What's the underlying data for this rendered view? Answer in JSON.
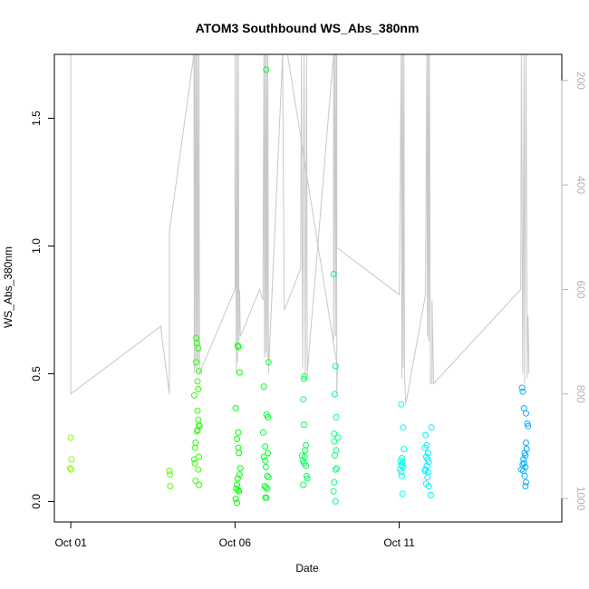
{
  "chart_data": {
    "type": "scatter",
    "title": "ATOM3 Southbound WS_Abs_380nm",
    "xlabel": "Date",
    "ylabel": "WS_Abs_380nm",
    "x_ticks": [
      {
        "day": 1,
        "label": "Oct 01"
      },
      {
        "day": 6,
        "label": "Oct 06"
      },
      {
        "day": 11,
        "label": "Oct 11"
      }
    ],
    "y_ticks": [
      0.0,
      0.5,
      1.0,
      1.5
    ],
    "y_tick_labels": [
      "0.0",
      "0.5",
      "1.0",
      "1.5"
    ],
    "right_ticks": [
      200,
      400,
      600,
      800,
      1000
    ],
    "right_tick_labels": [
      "200",
      "400",
      "600",
      "800",
      "1000"
    ],
    "xlim": [
      0.5,
      15.95
    ],
    "ylim": [
      -0.08,
      1.75
    ],
    "right_ylim": [
      1045,
      150
    ],
    "right_axis_color": "#b3b3b3",
    "pressure_line_color": "#c8c8c8",
    "grid": false,
    "points": [
      {
        "x": 1.0,
        "y": 0.25,
        "color": "#80ff00"
      },
      {
        "x": 1.02,
        "y": 0.165,
        "color": "#80ff00"
      },
      {
        "x": 0.98,
        "y": 0.13,
        "color": "#80ff00"
      },
      {
        "x": 1.01,
        "y": 0.125,
        "color": "#80ff00"
      },
      {
        "x": 4.0,
        "y": 0.12,
        "color": "#55ff00"
      },
      {
        "x": 4.02,
        "y": 0.105,
        "color": "#55ff00"
      },
      {
        "x": 4.03,
        "y": 0.06,
        "color": "#55ff00"
      },
      {
        "x": 4.82,
        "y": 0.64,
        "color": "#2bff00"
      },
      {
        "x": 4.84,
        "y": 0.62,
        "color": "#2bff00"
      },
      {
        "x": 4.88,
        "y": 0.6,
        "color": "#2bff00"
      },
      {
        "x": 4.82,
        "y": 0.545,
        "color": "#2bff00"
      },
      {
        "x": 4.9,
        "y": 0.51,
        "color": "#2bff00"
      },
      {
        "x": 4.86,
        "y": 0.47,
        "color": "#2bff00"
      },
      {
        "x": 4.88,
        "y": 0.44,
        "color": "#2bff00"
      },
      {
        "x": 4.76,
        "y": 0.415,
        "color": "#2bff00"
      },
      {
        "x": 4.86,
        "y": 0.355,
        "color": "#2bff00"
      },
      {
        "x": 4.88,
        "y": 0.32,
        "color": "#2bff00"
      },
      {
        "x": 4.9,
        "y": 0.3,
        "color": "#2bff00"
      },
      {
        "x": 4.92,
        "y": 0.295,
        "color": "#2bff00"
      },
      {
        "x": 4.86,
        "y": 0.28,
        "color": "#2bff00"
      },
      {
        "x": 4.84,
        "y": 0.275,
        "color": "#2bff00"
      },
      {
        "x": 4.8,
        "y": 0.23,
        "color": "#2bff00"
      },
      {
        "x": 4.78,
        "y": 0.21,
        "color": "#2bff00"
      },
      {
        "x": 4.9,
        "y": 0.175,
        "color": "#2bff00"
      },
      {
        "x": 4.76,
        "y": 0.165,
        "color": "#2bff00"
      },
      {
        "x": 4.78,
        "y": 0.15,
        "color": "#2bff00"
      },
      {
        "x": 4.88,
        "y": 0.125,
        "color": "#2bff00"
      },
      {
        "x": 4.8,
        "y": 0.08,
        "color": "#2bff00"
      },
      {
        "x": 4.9,
        "y": 0.065,
        "color": "#2bff00"
      },
      {
        "x": 6.08,
        "y": 0.61,
        "color": "#00ff00"
      },
      {
        "x": 6.1,
        "y": 0.605,
        "color": "#00ff00"
      },
      {
        "x": 6.14,
        "y": 0.505,
        "color": "#00ff00"
      },
      {
        "x": 6.02,
        "y": 0.365,
        "color": "#00ff00"
      },
      {
        "x": 6.1,
        "y": 0.27,
        "color": "#00ff00"
      },
      {
        "x": 6.06,
        "y": 0.245,
        "color": "#00ff00"
      },
      {
        "x": 6.1,
        "y": 0.21,
        "color": "#00ff00"
      },
      {
        "x": 6.12,
        "y": 0.19,
        "color": "#00ff00"
      },
      {
        "x": 6.16,
        "y": 0.13,
        "color": "#00ff00"
      },
      {
        "x": 6.14,
        "y": 0.105,
        "color": "#00ff00"
      },
      {
        "x": 6.08,
        "y": 0.09,
        "color": "#00ff00"
      },
      {
        "x": 6.06,
        "y": 0.065,
        "color": "#00ff00"
      },
      {
        "x": 6.04,
        "y": 0.05,
        "color": "#00ff00"
      },
      {
        "x": 6.1,
        "y": 0.045,
        "color": "#00ff00"
      },
      {
        "x": 6.12,
        "y": 0.04,
        "color": "#00ff00"
      },
      {
        "x": 6.02,
        "y": 0.01,
        "color": "#00ff00"
      },
      {
        "x": 6.06,
        "y": -0.005,
        "color": "#00ff00"
      },
      {
        "x": 6.95,
        "y": 1.69,
        "color": "#00ff2b"
      },
      {
        "x": 7.02,
        "y": 0.545,
        "color": "#00ff2b"
      },
      {
        "x": 6.88,
        "y": 0.45,
        "color": "#00ff2b"
      },
      {
        "x": 6.96,
        "y": 0.34,
        "color": "#00ff2b"
      },
      {
        "x": 7.0,
        "y": 0.33,
        "color": "#00ff2b"
      },
      {
        "x": 6.86,
        "y": 0.27,
        "color": "#00ff2b"
      },
      {
        "x": 6.92,
        "y": 0.215,
        "color": "#00ff2b"
      },
      {
        "x": 7.0,
        "y": 0.19,
        "color": "#00ff2b"
      },
      {
        "x": 6.88,
        "y": 0.175,
        "color": "#00ff2b"
      },
      {
        "x": 6.92,
        "y": 0.16,
        "color": "#00ff2b"
      },
      {
        "x": 6.94,
        "y": 0.135,
        "color": "#00ff2b"
      },
      {
        "x": 6.98,
        "y": 0.1,
        "color": "#00ff2b"
      },
      {
        "x": 7.02,
        "y": 0.095,
        "color": "#00ff2b"
      },
      {
        "x": 6.9,
        "y": 0.06,
        "color": "#00ff2b"
      },
      {
        "x": 6.94,
        "y": 0.055,
        "color": "#00ff2b"
      },
      {
        "x": 6.98,
        "y": 0.05,
        "color": "#00ff2b"
      },
      {
        "x": 6.92,
        "y": 0.015,
        "color": "#00ff2b"
      },
      {
        "x": 6.96,
        "y": 0.015,
        "color": "#00ff2b"
      },
      {
        "x": 8.12,
        "y": 0.49,
        "color": "#00ff55"
      },
      {
        "x": 8.1,
        "y": 0.48,
        "color": "#00ff55"
      },
      {
        "x": 8.08,
        "y": 0.4,
        "color": "#00ff55"
      },
      {
        "x": 8.1,
        "y": 0.3,
        "color": "#00ff55"
      },
      {
        "x": 8.16,
        "y": 0.22,
        "color": "#00ff55"
      },
      {
        "x": 8.14,
        "y": 0.2,
        "color": "#00ff55"
      },
      {
        "x": 8.04,
        "y": 0.18,
        "color": "#00ff55"
      },
      {
        "x": 8.12,
        "y": 0.175,
        "color": "#00ff55"
      },
      {
        "x": 8.06,
        "y": 0.16,
        "color": "#00ff55"
      },
      {
        "x": 8.1,
        "y": 0.15,
        "color": "#00ff55"
      },
      {
        "x": 8.16,
        "y": 0.14,
        "color": "#00ff55"
      },
      {
        "x": 8.18,
        "y": 0.1,
        "color": "#00ff55"
      },
      {
        "x": 8.2,
        "y": 0.09,
        "color": "#00ff55"
      },
      {
        "x": 8.08,
        "y": 0.065,
        "color": "#00ff55"
      },
      {
        "x": 9.0,
        "y": 0.89,
        "color": "#00ff80"
      },
      {
        "x": 9.06,
        "y": 0.53,
        "color": "#00ff80"
      },
      {
        "x": 9.04,
        "y": 0.42,
        "color": "#00ff80"
      },
      {
        "x": 9.08,
        "y": 0.33,
        "color": "#00ff80"
      },
      {
        "x": 9.02,
        "y": 0.265,
        "color": "#00ff80"
      },
      {
        "x": 9.14,
        "y": 0.25,
        "color": "#00ff80"
      },
      {
        "x": 9.02,
        "y": 0.235,
        "color": "#00ff80"
      },
      {
        "x": 9.08,
        "y": 0.2,
        "color": "#00ff80"
      },
      {
        "x": 9.04,
        "y": 0.18,
        "color": "#00ff80"
      },
      {
        "x": 9.1,
        "y": 0.13,
        "color": "#00ff80"
      },
      {
        "x": 9.06,
        "y": 0.125,
        "color": "#00ff80"
      },
      {
        "x": 9.02,
        "y": 0.075,
        "color": "#00ff80"
      },
      {
        "x": 9.0,
        "y": 0.04,
        "color": "#00ff80"
      },
      {
        "x": 9.06,
        "y": 0.0,
        "color": "#00ff80"
      },
      {
        "x": 11.06,
        "y": 0.38,
        "color": "#00ffea"
      },
      {
        "x": 11.12,
        "y": 0.29,
        "color": "#00ffea"
      },
      {
        "x": 11.14,
        "y": 0.205,
        "color": "#00ffea"
      },
      {
        "x": 11.08,
        "y": 0.17,
        "color": "#00ffea"
      },
      {
        "x": 11.04,
        "y": 0.16,
        "color": "#00ffea"
      },
      {
        "x": 11.1,
        "y": 0.155,
        "color": "#00ffea"
      },
      {
        "x": 11.06,
        "y": 0.145,
        "color": "#00ffea"
      },
      {
        "x": 11.08,
        "y": 0.14,
        "color": "#00ffea"
      },
      {
        "x": 11.12,
        "y": 0.135,
        "color": "#00ffea"
      },
      {
        "x": 11.02,
        "y": 0.125,
        "color": "#00ffea"
      },
      {
        "x": 11.06,
        "y": 0.115,
        "color": "#00ffea"
      },
      {
        "x": 11.08,
        "y": 0.1,
        "color": "#00ffea"
      },
      {
        "x": 11.1,
        "y": 0.03,
        "color": "#00ffea"
      },
      {
        "x": 11.8,
        "y": 0.26,
        "color": "#00f0ff"
      },
      {
        "x": 11.98,
        "y": 0.29,
        "color": "#00f0ff"
      },
      {
        "x": 11.84,
        "y": 0.22,
        "color": "#00f0ff"
      },
      {
        "x": 11.78,
        "y": 0.21,
        "color": "#00f0ff"
      },
      {
        "x": 11.88,
        "y": 0.19,
        "color": "#00f0ff"
      },
      {
        "x": 11.82,
        "y": 0.175,
        "color": "#00f0ff"
      },
      {
        "x": 11.86,
        "y": 0.165,
        "color": "#00f0ff"
      },
      {
        "x": 11.9,
        "y": 0.155,
        "color": "#00f0ff"
      },
      {
        "x": 11.84,
        "y": 0.14,
        "color": "#00f0ff"
      },
      {
        "x": 11.8,
        "y": 0.125,
        "color": "#00f0ff"
      },
      {
        "x": 11.78,
        "y": 0.12,
        "color": "#00f0ff"
      },
      {
        "x": 11.88,
        "y": 0.115,
        "color": "#00f0ff"
      },
      {
        "x": 11.86,
        "y": 0.095,
        "color": "#00f0ff"
      },
      {
        "x": 11.82,
        "y": 0.07,
        "color": "#00f0ff"
      },
      {
        "x": 11.9,
        "y": 0.06,
        "color": "#00f0ff"
      },
      {
        "x": 11.96,
        "y": 0.025,
        "color": "#00f0ff"
      },
      {
        "x": 14.74,
        "y": 0.445,
        "color": "#00b0ff"
      },
      {
        "x": 14.76,
        "y": 0.43,
        "color": "#00b0ff"
      },
      {
        "x": 14.8,
        "y": 0.365,
        "color": "#00b0ff"
      },
      {
        "x": 14.86,
        "y": 0.345,
        "color": "#00b0ff"
      },
      {
        "x": 14.9,
        "y": 0.305,
        "color": "#00b0ff"
      },
      {
        "x": 14.92,
        "y": 0.295,
        "color": "#00b0ff"
      },
      {
        "x": 14.86,
        "y": 0.23,
        "color": "#00b0ff"
      },
      {
        "x": 14.88,
        "y": 0.205,
        "color": "#00b0ff"
      },
      {
        "x": 14.82,
        "y": 0.19,
        "color": "#00b0ff"
      },
      {
        "x": 14.84,
        "y": 0.18,
        "color": "#00b0ff"
      },
      {
        "x": 14.78,
        "y": 0.165,
        "color": "#00b0ff"
      },
      {
        "x": 14.8,
        "y": 0.15,
        "color": "#00b0ff"
      },
      {
        "x": 14.76,
        "y": 0.145,
        "color": "#00b0ff"
      },
      {
        "x": 14.84,
        "y": 0.135,
        "color": "#00b0ff"
      },
      {
        "x": 14.72,
        "y": 0.125,
        "color": "#00b0ff"
      },
      {
        "x": 14.78,
        "y": 0.12,
        "color": "#00b0ff"
      },
      {
        "x": 14.82,
        "y": 0.1,
        "color": "#00b0ff"
      },
      {
        "x": 14.86,
        "y": 0.075,
        "color": "#00b0ff"
      },
      {
        "x": 14.84,
        "y": 0.06,
        "color": "#00b0ff"
      }
    ],
    "pressure_line": [
      [
        1.0,
        800
      ],
      [
        1.0,
        150
      ],
      [
        1.0,
        800
      ],
      [
        3.75,
        670
      ],
      [
        3.75,
        680
      ],
      [
        4.0,
        800
      ],
      [
        4.0,
        490
      ],
      [
        4.75,
        150
      ],
      [
        4.76,
        760
      ],
      [
        4.78,
        150
      ],
      [
        4.8,
        750
      ],
      [
        4.82,
        150
      ],
      [
        4.84,
        760
      ],
      [
        4.86,
        150
      ],
      [
        4.88,
        740
      ],
      [
        4.9,
        150
      ],
      [
        4.92,
        760
      ],
      [
        6.0,
        600
      ],
      [
        6.0,
        150
      ],
      [
        6.04,
        760
      ],
      [
        6.06,
        150
      ],
      [
        6.08,
        740
      ],
      [
        6.1,
        150
      ],
      [
        6.12,
        700
      ],
      [
        6.14,
        600
      ],
      [
        6.16,
        690
      ],
      [
        6.75,
        600
      ],
      [
        6.85,
        620
      ],
      [
        6.88,
        150
      ],
      [
        6.9,
        730
      ],
      [
        6.92,
        150
      ],
      [
        6.94,
        720
      ],
      [
        6.96,
        150
      ],
      [
        6.98,
        730
      ],
      [
        7.0,
        150
      ],
      [
        7.02,
        760
      ],
      [
        7.45,
        150
      ],
      [
        7.5,
        640
      ],
      [
        8.0,
        560
      ],
      [
        8.02,
        150
      ],
      [
        8.06,
        750
      ],
      [
        8.1,
        150
      ],
      [
        8.14,
        770
      ],
      [
        8.18,
        150
      ],
      [
        8.2,
        760
      ],
      [
        9.0,
        150
      ],
      [
        9.0,
        700
      ],
      [
        9.04,
        150
      ],
      [
        9.06,
        690
      ],
      [
        9.08,
        150
      ],
      [
        9.1,
        720
      ],
      [
        9.1,
        800
      ],
      [
        9.12,
        750
      ],
      [
        7.6,
        150
      ],
      [
        9.1,
        150
      ],
      [
        9.1,
        520
      ],
      [
        11.0,
        610
      ],
      [
        11.06,
        150
      ],
      [
        11.08,
        770
      ],
      [
        11.1,
        150
      ],
      [
        11.12,
        750
      ],
      [
        11.14,
        150
      ],
      [
        11.16,
        760
      ],
      [
        11.2,
        820
      ],
      [
        11.8,
        610
      ],
      [
        11.84,
        150
      ],
      [
        11.86,
        690
      ],
      [
        11.88,
        150
      ],
      [
        11.9,
        700
      ],
      [
        11.92,
        150
      ],
      [
        11.95,
        780
      ],
      [
        12.0,
        780
      ],
      [
        12.0,
        620
      ],
      [
        12.05,
        780
      ],
      [
        14.7,
        600
      ],
      [
        14.72,
        150
      ],
      [
        14.76,
        760
      ],
      [
        14.8,
        150
      ],
      [
        14.82,
        780
      ],
      [
        14.86,
        150
      ],
      [
        14.9,
        770
      ],
      [
        14.92,
        650
      ],
      [
        14.95,
        760
      ]
    ]
  }
}
